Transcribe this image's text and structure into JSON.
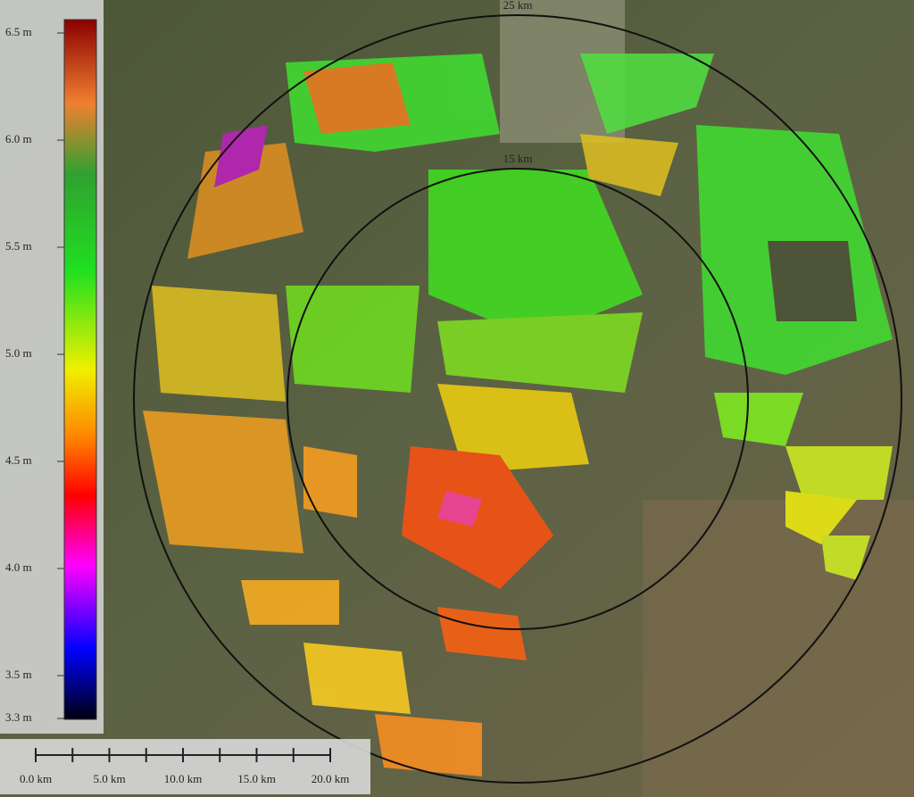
{
  "colorbar": {
    "range": [
      3.3,
      6.5
    ],
    "ticks": [
      {
        "value": 6.5,
        "label": "6.5 m"
      },
      {
        "value": 6.0,
        "label": "6.0 m"
      },
      {
        "value": 5.5,
        "label": "5.5 m"
      },
      {
        "value": 5.0,
        "label": "5.0 m"
      },
      {
        "value": 4.5,
        "label": "4.5 m"
      },
      {
        "value": 4.0,
        "label": "4.0 m"
      },
      {
        "value": 3.5,
        "label": "3.5 m"
      },
      {
        "value": 3.3,
        "label": "3.3 m"
      }
    ]
  },
  "range_rings": [
    {
      "value": 25,
      "label": "25 km"
    },
    {
      "value": 15,
      "label": "15 km"
    }
  ],
  "scale_bar": {
    "ticks": [
      {
        "value": 0,
        "label": "0.0 km"
      },
      {
        "value": 5,
        "label": "5.0 km"
      },
      {
        "value": 10,
        "label": "10.0 km"
      },
      {
        "value": 15,
        "label": "15.0 km"
      },
      {
        "value": 20,
        "label": "20.0 km"
      }
    ],
    "minor_ticks": [
      2.5,
      7.5,
      12.5,
      17.5
    ]
  }
}
